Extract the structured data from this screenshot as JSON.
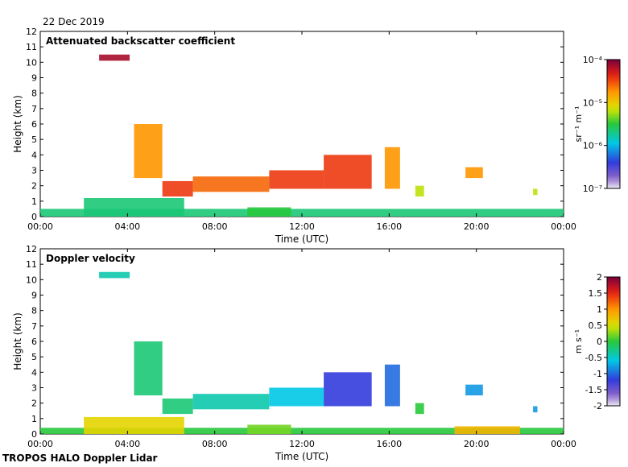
{
  "date": "22 Dec 2019",
  "footer": "TROPOS HALO Doppler Lidar",
  "chart_data": [
    {
      "type": "heatmap",
      "title": "Attenuated backscatter coefficient",
      "xlabel": "Time (UTC)",
      "ylabel": "Height (km)",
      "xticks": [
        "00:00",
        "04:00",
        "08:00",
        "12:00",
        "16:00",
        "20:00",
        "00:00"
      ],
      "yticks": [
        0,
        1,
        2,
        3,
        4,
        5,
        6,
        7,
        8,
        9,
        10,
        11,
        12
      ],
      "xlim_hours": [
        0,
        24
      ],
      "ylim": [
        0,
        12
      ],
      "colorbar": {
        "scale": "log",
        "unit": "sr⁻¹ m⁻¹",
        "ticks": [
          "10⁻⁴",
          "10⁻⁵",
          "10⁻⁶",
          "10⁻⁷"
        ],
        "range": [
          1e-07,
          0.0001
        ]
      },
      "features": [
        {
          "t0": 2.7,
          "t1": 4.1,
          "z0": 10.1,
          "z1": 10.5,
          "level": 0.95
        },
        {
          "t0": 4.3,
          "t1": 5.6,
          "z0": 2.5,
          "z1": 6.0,
          "level": 0.75
        },
        {
          "t0": 5.6,
          "t1": 7.0,
          "z0": 1.3,
          "z1": 2.3,
          "level": 0.85
        },
        {
          "t0": 7.0,
          "t1": 10.5,
          "z0": 1.6,
          "z1": 2.6,
          "level": 0.8
        },
        {
          "t0": 10.5,
          "t1": 13.0,
          "z0": 1.8,
          "z1": 3.0,
          "level": 0.85
        },
        {
          "t0": 13.0,
          "t1": 15.2,
          "z0": 1.8,
          "z1": 4.0,
          "level": 0.85
        },
        {
          "t0": 15.8,
          "t1": 16.5,
          "z0": 1.8,
          "z1": 4.5,
          "level": 0.75
        },
        {
          "t0": 17.2,
          "t1": 17.6,
          "z0": 1.3,
          "z1": 2.0,
          "level": 0.6
        },
        {
          "t0": 19.5,
          "t1": 20.3,
          "z0": 2.5,
          "z1": 3.2,
          "level": 0.75
        },
        {
          "t0": 22.6,
          "t1": 22.8,
          "z0": 1.4,
          "z1": 1.8,
          "level": 0.6
        },
        {
          "t0": 0.0,
          "t1": 24.0,
          "z0": 0.0,
          "z1": 0.5,
          "level": 0.45
        },
        {
          "t0": 2.0,
          "t1": 6.6,
          "z0": 0.0,
          "z1": 1.2,
          "level": 0.45
        },
        {
          "t0": 9.5,
          "t1": 11.5,
          "z0": 0.0,
          "z1": 0.6,
          "level": 0.5
        }
      ]
    },
    {
      "type": "heatmap",
      "title": "Doppler velocity",
      "xlabel": "Time (UTC)",
      "ylabel": "Height (km)",
      "xticks": [
        "00:00",
        "04:00",
        "08:00",
        "12:00",
        "16:00",
        "20:00",
        "00:00"
      ],
      "yticks": [
        0,
        1,
        2,
        3,
        4,
        5,
        6,
        7,
        8,
        9,
        10,
        11,
        12
      ],
      "xlim_hours": [
        0,
        24
      ],
      "ylim": [
        0,
        12
      ],
      "colorbar": {
        "scale": "linear",
        "unit": "m s⁻¹",
        "ticks": [
          "2",
          "1.5",
          "1",
          "0.5",
          "0",
          "-0.5",
          "-1",
          "-1.5",
          "-2"
        ],
        "range": [
          -2,
          2
        ]
      },
      "features": [
        {
          "t0": 2.7,
          "t1": 4.1,
          "z0": 10.1,
          "z1": 10.5,
          "level": 0.4
        },
        {
          "t0": 4.3,
          "t1": 5.6,
          "z0": 2.5,
          "z1": 6.0,
          "level": 0.45
        },
        {
          "t0": 5.6,
          "t1": 7.0,
          "z0": 1.3,
          "z1": 2.3,
          "level": 0.45
        },
        {
          "t0": 7.0,
          "t1": 10.5,
          "z0": 1.6,
          "z1": 2.6,
          "level": 0.4
        },
        {
          "t0": 10.5,
          "t1": 13.0,
          "z0": 1.8,
          "z1": 3.0,
          "level": 0.35
        },
        {
          "t0": 13.0,
          "t1": 15.2,
          "z0": 1.8,
          "z1": 4.0,
          "level": 0.2
        },
        {
          "t0": 15.8,
          "t1": 16.5,
          "z0": 1.8,
          "z1": 4.5,
          "level": 0.25
        },
        {
          "t0": 17.2,
          "t1": 17.6,
          "z0": 1.3,
          "z1": 2.0,
          "level": 0.5
        },
        {
          "t0": 19.5,
          "t1": 20.3,
          "z0": 2.5,
          "z1": 3.2,
          "level": 0.3
        },
        {
          "t0": 22.6,
          "t1": 22.8,
          "z0": 1.4,
          "z1": 1.8,
          "level": 0.3
        },
        {
          "t0": 0.0,
          "t1": 24.0,
          "z0": 0.0,
          "z1": 0.4,
          "level": 0.5
        },
        {
          "t0": 2.0,
          "t1": 6.6,
          "z0": 0.0,
          "z1": 1.1,
          "level": 0.65
        },
        {
          "t0": 9.5,
          "t1": 11.5,
          "z0": 0.0,
          "z1": 0.6,
          "level": 0.55
        },
        {
          "t0": 19.0,
          "t1": 22.0,
          "z0": 0.0,
          "z1": 0.5,
          "level": 0.7
        }
      ]
    }
  ]
}
